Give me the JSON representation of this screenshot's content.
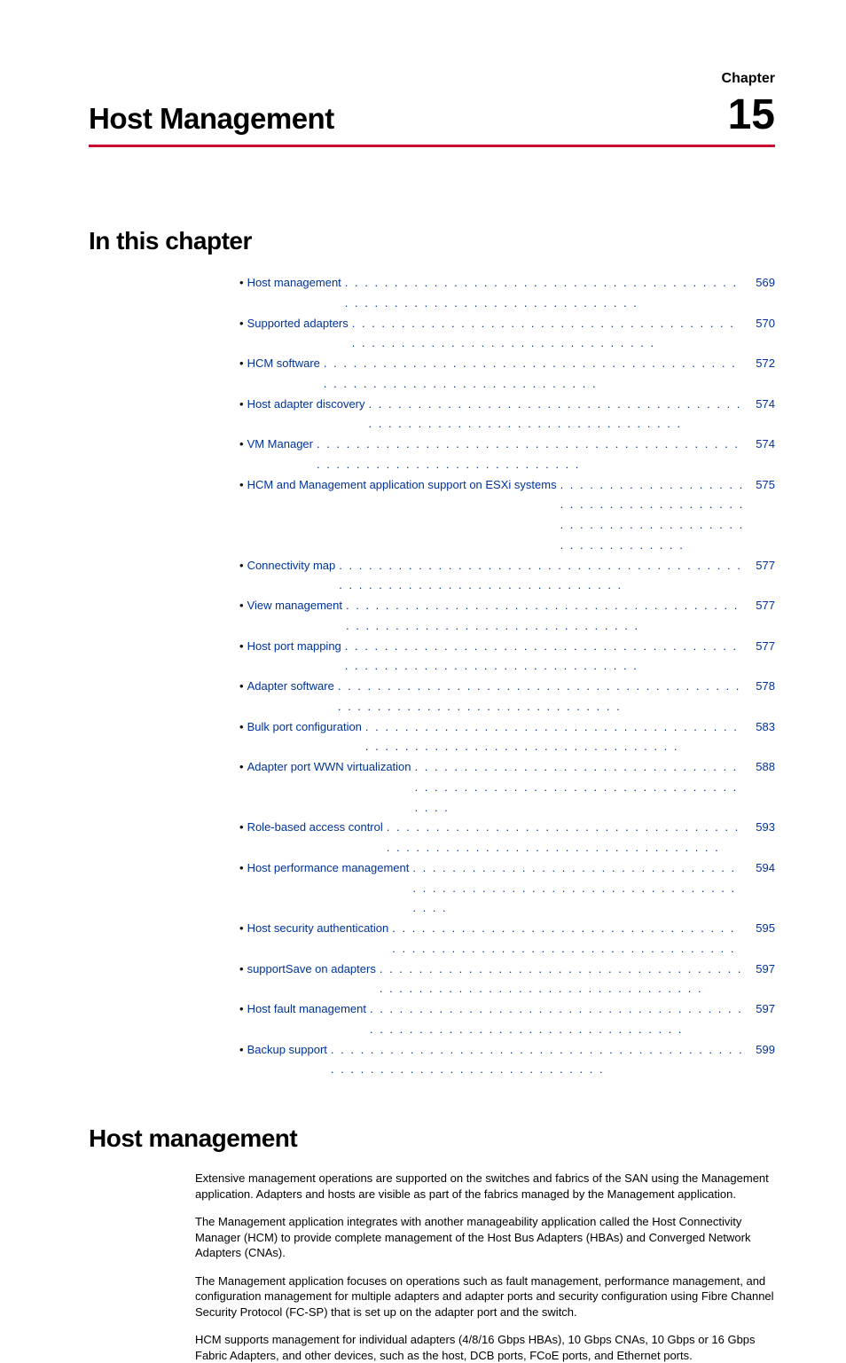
{
  "header": {
    "chapter_label": "Chapter",
    "chapter_title": "Host Management",
    "chapter_number": "15"
  },
  "sections": {
    "in_this_chapter_heading": "In this chapter",
    "host_management_heading": "Host management"
  },
  "toc": [
    {
      "label": "Host management",
      "page": "569"
    },
    {
      "label": "Supported adapters",
      "page": "570"
    },
    {
      "label": "HCM software",
      "page": "572"
    },
    {
      "label": "Host adapter discovery",
      "page": "574"
    },
    {
      "label": "VM Manager",
      "page": "574"
    },
    {
      "label": "HCM and Management application support on ESXi systems",
      "page": "575"
    },
    {
      "label": "Connectivity map",
      "page": "577"
    },
    {
      "label": "View management",
      "page": "577"
    },
    {
      "label": "Host port mapping",
      "page": "577"
    },
    {
      "label": "Adapter software",
      "page": "578"
    },
    {
      "label": "Bulk port configuration",
      "page": "583"
    },
    {
      "label": "Adapter port WWN virtualization",
      "page": "588"
    },
    {
      "label": "Role-based access control",
      "page": "593"
    },
    {
      "label": "Host performance management",
      "page": "594"
    },
    {
      "label": "Host security authentication",
      "page": "595"
    },
    {
      "label": "supportSave on adapters",
      "page": "597"
    },
    {
      "label": "Host fault management",
      "page": "597"
    },
    {
      "label": "Backup support",
      "page": "599"
    }
  ],
  "body": {
    "p1": "Extensive management operations are supported on the switches and fabrics of the SAN using the Management application. Adapters and hosts are visible as part of the fabrics managed by the Management application.",
    "p2": "The Management application integrates with another manageability application called the Host Connectivity Manager (HCM) to provide complete management of the Host Bus Adapters (HBAs) and Converged Network Adapters (CNAs).",
    "p3": "The Management application focuses on operations such as fault management, performance management, and configuration management for multiple adapters and adapter ports and security configuration using Fibre Channel Security Protocol (FC-SP) that is set up on the adapter port and the switch.",
    "p4": "HCM supports management for individual adapters (4/8/16 Gbps HBAs), 10 Gbps CNAs, 10 Gbps or 16 Gbps Fabric Adapters, and other devices, such as the host, DCB ports, FCoE ports, and Ethernet ports."
  },
  "colors": {
    "rule": "#cc092f",
    "link": "#003399",
    "text": "#000000",
    "background": "#ffffff"
  }
}
